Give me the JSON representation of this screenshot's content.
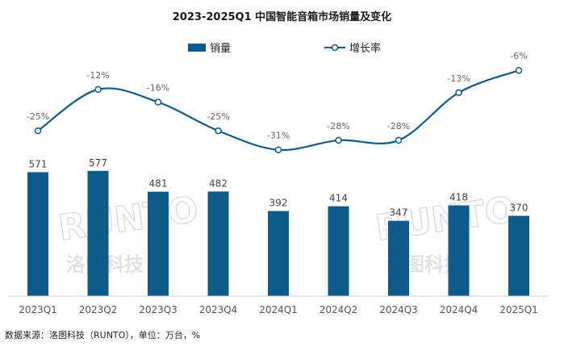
{
  "chart_data": {
    "type": "bar",
    "title": "2023-2025Q1 中国智能音箱市场销量及变化",
    "categories": [
      "2023Q1",
      "2023Q2",
      "2023Q3",
      "2023Q4",
      "2024Q1",
      "2024Q2",
      "2024Q3",
      "2024Q4",
      "2025Q1"
    ],
    "series": [
      {
        "name": "销量",
        "type": "bar",
        "color": "#0e5a8a",
        "values": [
          571,
          577,
          481,
          482,
          392,
          414,
          347,
          418,
          370
        ]
      },
      {
        "name": "增长率",
        "type": "line",
        "color": "#0e5a8a",
        "values": [
          -25,
          -12,
          -16,
          -25,
          -31,
          -28,
          -28,
          -13,
          -6
        ],
        "labels": [
          "-25%",
          "-12%",
          "-16%",
          "-25%",
          "-31%",
          "-28%",
          "-28%",
          "-13%",
          "-6%"
        ]
      }
    ],
    "legend_position": "top-center",
    "grid": false
  },
  "source_note": "数据来源：洛图科技（RUNTO），单位：万台，%",
  "watermark": {
    "brand": "RUNTO",
    "chinese": "洛图科技"
  }
}
